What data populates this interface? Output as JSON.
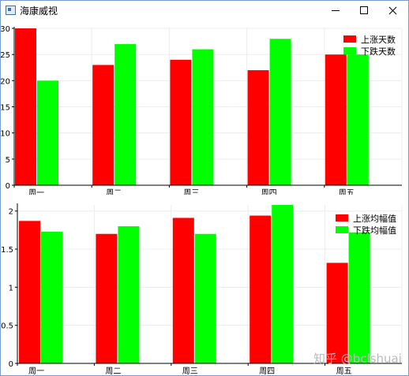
{
  "window": {
    "title": "海康威视",
    "icon": "app-window-icon",
    "controls": [
      "minimize-icon",
      "maximize-icon",
      "close-icon"
    ]
  },
  "colors": {
    "rise": "#ff0000",
    "fall": "#00ff00"
  },
  "watermark": "知乎 @bclshuai",
  "chart_data": [
    {
      "type": "bar",
      "categories": [
        "周一",
        "周二",
        "周三",
        "周四",
        "周五"
      ],
      "series": [
        {
          "name": "上涨天数",
          "color": "#ff0000",
          "values": [
            30,
            23,
            24,
            22,
            25
          ]
        },
        {
          "name": "下跌天数",
          "color": "#00ff00",
          "values": [
            20,
            27,
            26,
            28,
            25
          ]
        }
      ],
      "ylim": [
        0,
        30
      ],
      "yticks": [
        0,
        5,
        10,
        15,
        20,
        25,
        30
      ],
      "ytick_labels": [
        "0",
        "5",
        "10",
        "15",
        "20",
        "25",
        "30"
      ],
      "grid": true,
      "legend": "top-right"
    },
    {
      "type": "bar",
      "categories": [
        "周一",
        "周二",
        "周三",
        "周四",
        "周五"
      ],
      "series": [
        {
          "name": "上涨均幅值",
          "color": "#ff0000",
          "values": [
            1.87,
            1.7,
            1.91,
            1.94,
            1.32
          ]
        },
        {
          "name": "下跌均幅值",
          "color": "#00ff00",
          "values": [
            1.73,
            1.8,
            1.7,
            2.08,
            1.72
          ]
        }
      ],
      "ylim": [
        0,
        2.08
      ],
      "yticks": [
        0,
        0.5,
        1,
        1.5,
        2
      ],
      "ytick_labels": [
        "0",
        "0.5",
        "1",
        "1.5",
        "2"
      ],
      "grid": true,
      "legend": "top-right"
    }
  ]
}
